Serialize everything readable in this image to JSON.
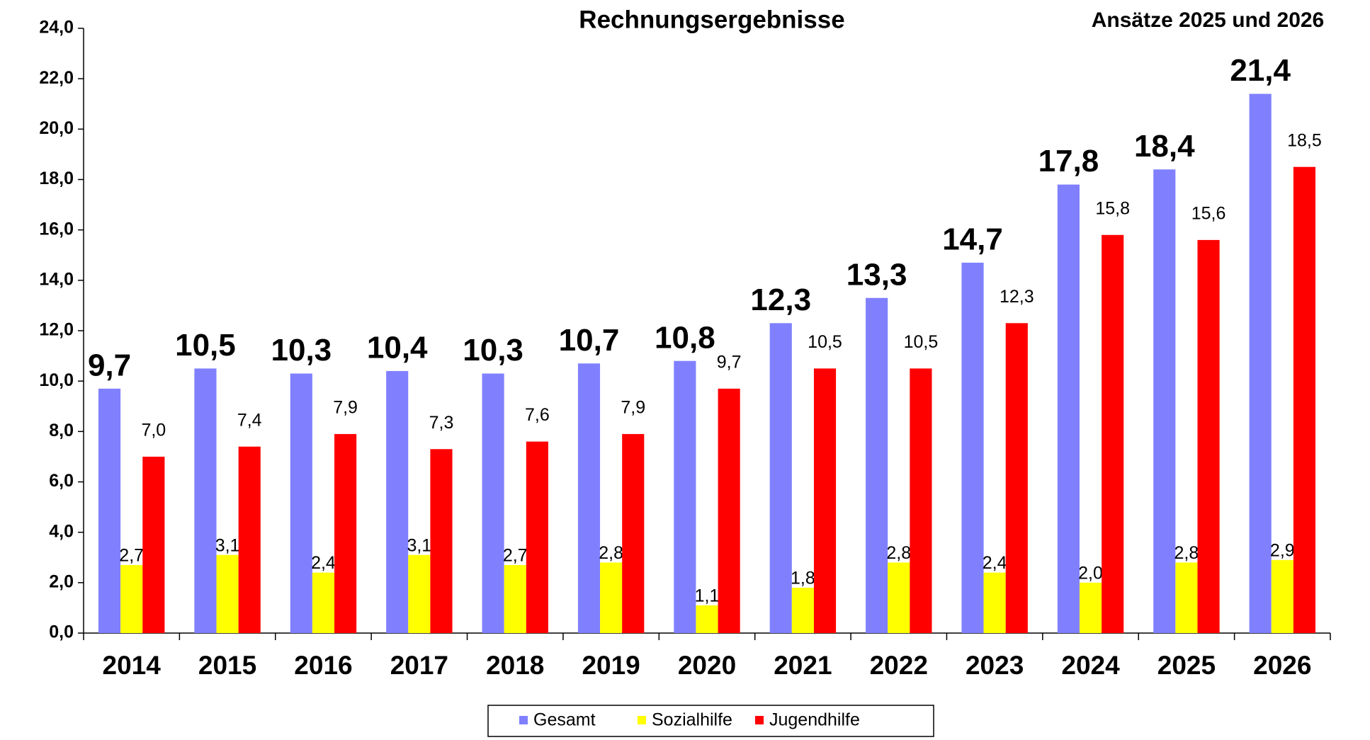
{
  "chart_data": {
    "type": "bar",
    "annotations": [
      "Rechnungsergebnisse",
      "Ansätze 2025 und 2026"
    ],
    "categories": [
      "2014",
      "2015",
      "2016",
      "2017",
      "2018",
      "2019",
      "2020",
      "2021",
      "2022",
      "2023",
      "2024",
      "2025",
      "2026"
    ],
    "series": [
      {
        "name": "Gesamt",
        "color": "#8080ff",
        "values": [
          9.7,
          10.5,
          10.3,
          10.4,
          10.3,
          10.7,
          10.8,
          12.3,
          13.3,
          14.7,
          17.8,
          18.4,
          21.4
        ],
        "value_labels": [
          "9,7",
          "10,5",
          "10,3",
          "10,4",
          "10,3",
          "10,7",
          "10,8",
          "12,3",
          "13,3",
          "14,7",
          "17,8",
          "18,4",
          "21,4"
        ]
      },
      {
        "name": "Sozialhilfe",
        "color": "#ffff00",
        "values": [
          2.7,
          3.1,
          2.4,
          3.1,
          2.7,
          2.8,
          1.1,
          1.8,
          2.8,
          2.4,
          2.0,
          2.8,
          2.9
        ],
        "value_labels": [
          "2,7",
          "3,1",
          "2,4",
          "3,1",
          "2,7",
          "2,8",
          "1,1",
          "1,8",
          "2,8",
          "2,4",
          "2,0",
          "2,8",
          "2,9"
        ]
      },
      {
        "name": "Jugendhilfe",
        "color": "#ff0000",
        "values": [
          7.0,
          7.4,
          7.9,
          7.3,
          7.6,
          7.9,
          9.7,
          10.5,
          10.5,
          12.3,
          15.8,
          15.6,
          18.5
        ],
        "value_labels": [
          "7,0",
          "7,4",
          "7,9",
          "7,3",
          "7,6",
          "7,9",
          "9,7",
          "10,5",
          "10,5",
          "12,3",
          "15,8",
          "15,6",
          "18,5"
        ]
      }
    ],
    "ylim": [
      0,
      24
    ],
    "yticks": [
      {
        "value": 0,
        "label": "0,0"
      },
      {
        "value": 2,
        "label": "2,0"
      },
      {
        "value": 4,
        "label": "4,0"
      },
      {
        "value": 6,
        "label": "6,0"
      },
      {
        "value": 8,
        "label": "8,0"
      },
      {
        "value": 10,
        "label": "10,0"
      },
      {
        "value": 12,
        "label": "12,0"
      },
      {
        "value": 14,
        "label": "14,0"
      },
      {
        "value": 16,
        "label": "16,0"
      },
      {
        "value": 18,
        "label": "18,0"
      },
      {
        "value": 20,
        "label": "20,0"
      },
      {
        "value": 22,
        "label": "22,0"
      },
      {
        "value": 24,
        "label": "24,0"
      }
    ],
    "grid": false,
    "legend": "bottom"
  }
}
